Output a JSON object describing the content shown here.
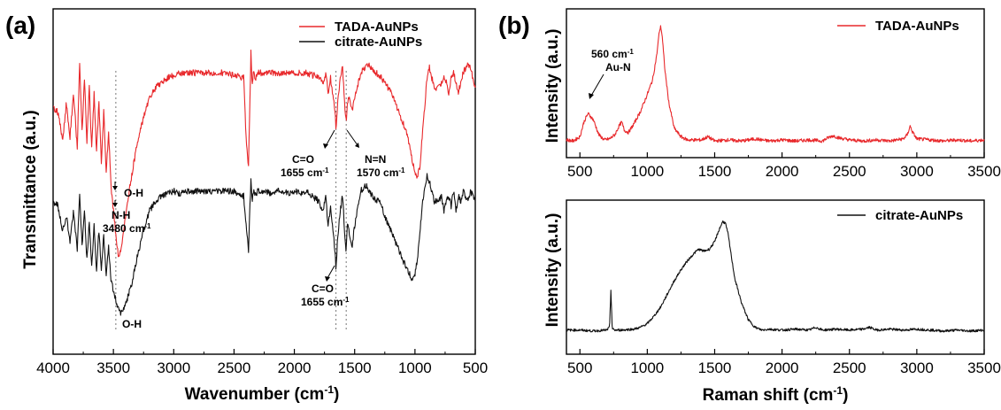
{
  "chart_data": [
    {
      "panel": "(a)",
      "type": "line",
      "xlabel": "Wavenumber (cm",
      "xlabel_sup": "-1",
      "xlabel_close": ")",
      "ylabel": "Transmittance (a.u.)",
      "xlim": [
        4000,
        500
      ],
      "x_reversed": true,
      "xticks": [
        4000,
        3500,
        3000,
        2500,
        2000,
        1500,
        1000,
        500
      ],
      "legend_position": "top-right",
      "series": [
        {
          "name": "TADA-AuNPs",
          "color": "#e8282b",
          "x": [
            4000,
            3960,
            3920,
            3890,
            3860,
            3830,
            3800,
            3780,
            3760,
            3740,
            3720,
            3700,
            3680,
            3660,
            3640,
            3620,
            3600,
            3580,
            3560,
            3540,
            3520,
            3500,
            3480,
            3460,
            3440,
            3420,
            3400,
            3350,
            3300,
            3250,
            3200,
            3150,
            3100,
            3050,
            3000,
            2950,
            2900,
            2800,
            2700,
            2600,
            2500,
            2420,
            2400,
            2380,
            2370,
            2360,
            2350,
            2340,
            2320,
            2300,
            2250,
            2200,
            2150,
            2100,
            2050,
            2000,
            1950,
            1900,
            1850,
            1800,
            1760,
            1740,
            1720,
            1700,
            1680,
            1660,
            1655,
            1640,
            1620,
            1600,
            1590,
            1580,
            1570,
            1560,
            1540,
            1520,
            1500,
            1480,
            1450,
            1420,
            1400,
            1380,
            1350,
            1320,
            1300,
            1280,
            1250,
            1200,
            1150,
            1100,
            1060,
            1040,
            1020,
            1000,
            980,
            960,
            940,
            920,
            900,
            880,
            860,
            840,
            820,
            800,
            780,
            760,
            740,
            720,
            700,
            680,
            660,
            640,
            620,
            600,
            580,
            560,
            540,
            520,
            500
          ],
          "y": [
            72,
            70,
            58,
            74,
            60,
            78,
            55,
            89,
            62,
            84,
            58,
            80,
            55,
            78,
            54,
            74,
            50,
            70,
            46,
            62,
            40,
            30,
            20,
            12,
            14,
            20,
            28,
            44,
            58,
            68,
            76,
            80,
            82,
            84,
            85,
            86,
            86,
            86,
            86,
            86,
            85,
            84,
            60,
            48,
            72,
            94,
            82,
            86,
            84,
            86,
            86,
            86,
            86,
            86,
            86,
            86,
            86,
            86,
            85,
            85,
            82,
            86,
            78,
            84,
            76,
            70,
            62,
            74,
            84,
            88,
            80,
            70,
            66,
            74,
            76,
            70,
            76,
            80,
            86,
            88,
            90,
            89,
            87,
            86,
            85,
            84,
            82,
            78,
            72,
            66,
            60,
            56,
            50,
            46,
            44,
            48,
            60,
            72,
            84,
            88,
            84,
            80,
            80,
            80,
            82,
            84,
            82,
            78,
            84,
            86,
            82,
            78,
            82,
            86,
            88,
            90,
            88,
            84,
            80
          ]
        },
        {
          "name": "citrate-AuNPs",
          "color": "#111111",
          "x": [
            4000,
            3960,
            3920,
            3890,
            3860,
            3830,
            3800,
            3780,
            3760,
            3740,
            3720,
            3700,
            3680,
            3660,
            3640,
            3620,
            3600,
            3580,
            3560,
            3540,
            3520,
            3500,
            3480,
            3460,
            3440,
            3420,
            3400,
            3350,
            3300,
            3250,
            3200,
            3150,
            3100,
            3050,
            3000,
            2950,
            2900,
            2800,
            2700,
            2600,
            2500,
            2420,
            2400,
            2380,
            2370,
            2360,
            2350,
            2340,
            2320,
            2300,
            2250,
            2200,
            2150,
            2100,
            2050,
            2000,
            1950,
            1900,
            1850,
            1800,
            1760,
            1740,
            1720,
            1700,
            1680,
            1660,
            1655,
            1640,
            1620,
            1600,
            1590,
            1580,
            1570,
            1560,
            1540,
            1520,
            1500,
            1480,
            1450,
            1420,
            1400,
            1380,
            1350,
            1320,
            1300,
            1280,
            1250,
            1200,
            1150,
            1100,
            1060,
            1040,
            1020,
            1000,
            980,
            960,
            940,
            920,
            900,
            880,
            860,
            840,
            820,
            800,
            780,
            760,
            740,
            720,
            700,
            680,
            660,
            640,
            620,
            600,
            580,
            560,
            540,
            520,
            500
          ],
          "y": [
            34,
            32,
            22,
            28,
            18,
            30,
            14,
            36,
            16,
            30,
            10,
            26,
            8,
            24,
            6,
            22,
            6,
            20,
            4,
            16,
            2,
            -2,
            -6,
            -10,
            -12,
            -10,
            -8,
            0,
            12,
            22,
            30,
            34,
            36,
            37,
            38,
            37,
            38,
            38,
            38,
            38,
            38,
            36,
            24,
            14,
            30,
            42,
            34,
            38,
            37,
            38,
            38,
            37,
            38,
            38,
            37,
            38,
            37,
            38,
            36,
            34,
            30,
            36,
            24,
            32,
            22,
            12,
            6,
            20,
            30,
            36,
            28,
            18,
            14,
            24,
            20,
            16,
            24,
            30,
            38,
            40,
            40,
            38,
            36,
            34,
            34,
            32,
            28,
            22,
            16,
            10,
            6,
            4,
            2,
            4,
            10,
            20,
            32,
            40,
            44,
            42,
            38,
            34,
            34,
            34,
            36,
            30,
            34,
            36,
            32,
            38,
            30,
            36,
            34,
            38,
            36,
            34,
            38,
            36,
            34
          ]
        }
      ],
      "annotations": [
        {
          "id": "oh_red",
          "text": "O-H"
        },
        {
          "id": "nh",
          "text": "N-H"
        },
        {
          "id": "nh_wn",
          "text": "3480 cm"
        },
        {
          "id": "co_red",
          "text": "C=O"
        },
        {
          "id": "co_red_wn",
          "text": "1655 cm"
        },
        {
          "id": "nn",
          "text": "N=N"
        },
        {
          "id": "nn_wn",
          "text": "1570 cm"
        },
        {
          "id": "co_black",
          "text": "C=O"
        },
        {
          "id": "co_black_wn",
          "text": "1655 cm"
        },
        {
          "id": "oh_black",
          "text": "O-H"
        }
      ],
      "sup": "-1",
      "reference_lines_x": [
        3480,
        1655,
        1570
      ]
    },
    {
      "panel": "(b)",
      "type": "line",
      "xlabel": "Raman shift (cm",
      "xlabel_sup": "-1",
      "xlabel_close": ")",
      "xlim": [
        400,
        3500
      ],
      "xticks": [
        500,
        1000,
        1500,
        2000,
        2500,
        3000,
        3500
      ],
      "subplots": [
        {
          "ylabel": "Intensity (a.u.)",
          "legend_position": "top-right",
          "series": [
            {
              "name": "TADA-AuNPs",
              "color": "#e8282b",
              "x": [
                400,
                450,
                500,
                530,
                560,
                600,
                640,
                680,
                720,
                760,
                790,
                810,
                830,
                860,
                900,
                950,
                1000,
                1040,
                1070,
                1090,
                1100,
                1110,
                1130,
                1160,
                1200,
                1250,
                1300,
                1400,
                1450,
                1500,
                1600,
                1700,
                1800,
                1900,
                2000,
                2100,
                2200,
                2300,
                2340,
                2380,
                2420,
                2500,
                2600,
                2700,
                2800,
                2900,
                2930,
                2950,
                2970,
                3000,
                3100,
                3200,
                3300,
                3400,
                3500
              ],
              "y": [
                5,
                4,
                8,
                22,
                30,
                24,
                10,
                5,
                6,
                10,
                18,
                22,
                14,
                12,
                20,
                32,
                48,
                62,
                85,
                108,
                112,
                104,
                72,
                40,
                16,
                8,
                5,
                5,
                8,
                4,
                5,
                4,
                6,
                4,
                5,
                4,
                5,
                4,
                7,
                9,
                7,
                5,
                4,
                5,
                4,
                6,
                10,
                18,
                12,
                6,
                5,
                4,
                5,
                4,
                5
              ]
            }
          ],
          "annotations": [
            {
              "id": "peak_wn",
              "text": "560 cm"
            },
            {
              "id": "peak_label",
              "text": "Au-N"
            }
          ],
          "sup": "-1"
        },
        {
          "ylabel": "Intensity (a.u.)",
          "legend_position": "top-right",
          "series": [
            {
              "name": "citrate-AuNPs",
              "color": "#111111",
              "x": [
                400,
                500,
                600,
                700,
                720,
                730,
                740,
                760,
                800,
                900,
                950,
                1000,
                1050,
                1100,
                1150,
                1200,
                1250,
                1300,
                1350,
                1380,
                1420,
                1460,
                1500,
                1530,
                1560,
                1580,
                1600,
                1620,
                1650,
                1700,
                1750,
                1800,
                1850,
                1900,
                2000,
                2100,
                2200,
                2250,
                2300,
                2400,
                2500,
                2600,
                2650,
                2700,
                2800,
                2900,
                3000,
                3100,
                3200,
                3300,
                3400,
                3500
              ],
              "y": [
                5,
                5,
                4,
                5,
                8,
                48,
                6,
                5,
                5,
                6,
                8,
                12,
                20,
                30,
                44,
                58,
                70,
                80,
                88,
                92,
                90,
                92,
                100,
                112,
                122,
                120,
                108,
                88,
                60,
                34,
                16,
                8,
                5,
                6,
                5,
                6,
                5,
                8,
                5,
                6,
                5,
                6,
                8,
                5,
                6,
                5,
                6,
                5,
                4,
                5,
                4,
                5
              ]
            }
          ]
        }
      ]
    }
  ]
}
